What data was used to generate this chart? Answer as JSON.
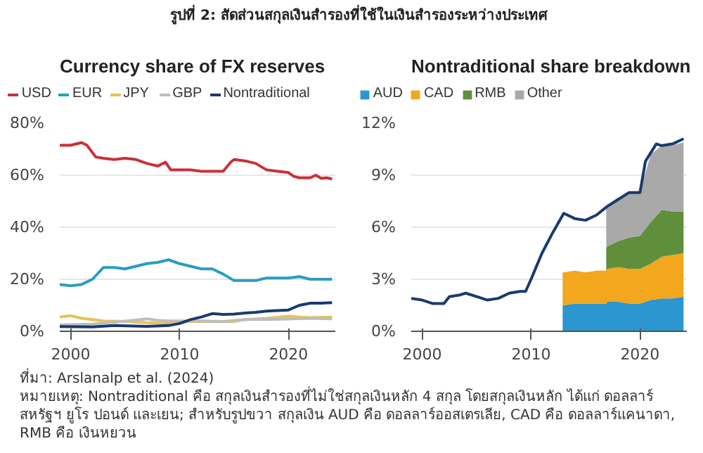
{
  "chart_data": [
    {
      "type": "line",
      "title": "Currency share of FX reserves",
      "annotations": [
        "รูปที่ 2: สัดส่วนสกุลเงินสำรองที่ใช้ในเงินสำรองระหว่างประเทศ",
        "ที่มา: Arslanalp et al. (2024)",
        "หมายเหตุ: Nontraditional คือ สกุลเงินสำรองที่ไม่ใช่สกุลเงินหลัก 4 สกุล โดยสกุลเงินหลัก ได้แก่ ดอลลาร์สหรัฐฯ ยูโร ปอนด์ และเยน; สำหรับรูปขวา สกุลเงิน AUD คือ ดอลลาร์ออสเตรเลีย, CAD คือ ดอลลาร์แคนาดา, RMB คือ เงินหยวน"
      ],
      "xlim": [
        1999,
        2024.3
      ],
      "xticks": [
        2000,
        2010,
        2020
      ],
      "ylim": [
        0,
        80
      ],
      "yticks": [
        {
          "value": 0,
          "label": "0%"
        },
        {
          "value": 20,
          "label": "20%"
        },
        {
          "value": 40,
          "label": "40%"
        },
        {
          "value": 60,
          "label": "60%"
        },
        {
          "value": 80,
          "label": "80%"
        }
      ],
      "grid": "y",
      "legend": "top left",
      "line_style": "solid",
      "series": [
        {
          "name": "USD",
          "color": "#c8313a",
          "x": [
            1999,
            2000,
            2001,
            2001.5,
            2002.3,
            2003,
            2004,
            2005,
            2006,
            2007,
            2008,
            2008.7,
            2009.2,
            2010,
            2011,
            2012,
            2013,
            2014,
            2014.7,
            2015,
            2016,
            2017,
            2018,
            2019,
            2020,
            2020.5,
            2021,
            2022,
            2022.5,
            2023,
            2023.5,
            2024
          ],
          "values": [
            71.5,
            71.5,
            72.5,
            71.5,
            67,
            66.5,
            66,
            66.5,
            66,
            64.5,
            63.5,
            65,
            62,
            62,
            62,
            61.5,
            61.5,
            61.5,
            65,
            66,
            65.5,
            64.5,
            62,
            61.5,
            61,
            59.5,
            59,
            59,
            60,
            58.8,
            59,
            58.5
          ]
        },
        {
          "name": "EUR",
          "color": "#2b9cc4",
          "x": [
            1999,
            2000,
            2001,
            2002,
            2003,
            2004,
            2005,
            2006,
            2007,
            2008,
            2009,
            2010,
            2011,
            2012,
            2013,
            2014,
            2015,
            2016,
            2017,
            2018,
            2019,
            2020,
            2021,
            2022,
            2023,
            2024
          ],
          "values": [
            18,
            17.5,
            18,
            20,
            24.5,
            24.5,
            24,
            25,
            26,
            26.5,
            27.5,
            26,
            25,
            24,
            24,
            22,
            19.5,
            19.5,
            19.5,
            20.5,
            20.5,
            20.5,
            21,
            20,
            20,
            20
          ]
        },
        {
          "name": "JPY",
          "color": "#e8c15a",
          "x": [
            1999,
            2000,
            2001,
            2002,
            2003,
            2005,
            2007,
            2009,
            2011,
            2013,
            2015,
            2016,
            2018,
            2020,
            2021,
            2022,
            2024
          ],
          "values": [
            5.5,
            6,
            5,
            4.5,
            4,
            3.8,
            3.3,
            3,
            3.8,
            3.8,
            3.8,
            4.5,
            5,
            5.8,
            5.5,
            5.3,
            5.5
          ]
        },
        {
          "name": "GBP",
          "color": "#bdbdbd",
          "x": [
            1999,
            2002,
            2004,
            2006,
            2007,
            2008,
            2009,
            2012,
            2014,
            2016,
            2018,
            2020,
            2022,
            2024
          ],
          "values": [
            2.5,
            2.8,
            3.5,
            4.3,
            4.8,
            4.2,
            4,
            4,
            3.8,
            4.5,
            4.5,
            4.7,
            5,
            4.8
          ]
        },
        {
          "name": "Nontraditional",
          "color": "#1a3a6e",
          "x": [
            1999,
            2002,
            2004,
            2007,
            2009,
            2010,
            2011,
            2012,
            2013,
            2014,
            2015,
            2016,
            2017,
            2018,
            2019,
            2020,
            2021,
            2022,
            2023,
            2024
          ],
          "values": [
            1.8,
            1.7,
            2.2,
            1.9,
            2.2,
            3,
            4.5,
            5.5,
            6.8,
            6.5,
            6.6,
            7,
            7.3,
            7.8,
            8,
            8.2,
            10,
            10.8,
            10.8,
            11
          ]
        }
      ]
    },
    {
      "type": "area",
      "title": "Nontraditional share breakdown",
      "stacked": true,
      "xlim": [
        1999,
        2024.3
      ],
      "xticks": [
        2000,
        2010,
        2020
      ],
      "ylim": [
        0,
        12
      ],
      "yticks": [
        {
          "value": 0,
          "label": "0%"
        },
        {
          "value": 3,
          "label": "3%"
        },
        {
          "value": 6,
          "label": "6%"
        },
        {
          "value": 9,
          "label": "9%"
        },
        {
          "value": 12,
          "label": "12%"
        }
      ],
      "grid": "y",
      "legend": "top left",
      "x": [
        2012.9,
        2013,
        2014,
        2015,
        2016,
        2016.9,
        2017,
        2018,
        2019,
        2020,
        2021,
        2022,
        2023,
        2024
      ],
      "series": [
        {
          "name": "AUD",
          "color": "#2b96d0",
          "values": [
            1.5,
            1.5,
            1.6,
            1.6,
            1.6,
            1.6,
            1.7,
            1.7,
            1.6,
            1.6,
            1.8,
            1.9,
            1.9,
            2.0
          ]
        },
        {
          "name": "CAD",
          "color": "#f2a71c",
          "values": [
            1.9,
            1.9,
            1.9,
            1.8,
            1.9,
            1.9,
            1.9,
            2.0,
            2.0,
            2.0,
            2.1,
            2.4,
            2.5,
            2.5
          ]
        },
        {
          "name": "RMB",
          "color": "#5f8f3a",
          "values": [
            null,
            null,
            null,
            null,
            null,
            1.3,
            1.3,
            1.5,
            1.8,
            1.9,
            2.4,
            2.7,
            2.5,
            2.4
          ]
        },
        {
          "name": "Other",
          "color": "#a9a9a9",
          "values": [
            null,
            null,
            null,
            null,
            null,
            2.4,
            2.4,
            2.5,
            2.6,
            2.6,
            3.9,
            3.7,
            3.8,
            4.0
          ]
        },
        {
          "type": "line",
          "color": "#1a3a6e",
          "x": [
            1999,
            2000,
            2001,
            2002,
            2002.5,
            2003.5,
            2004,
            2005,
            2006,
            2007,
            2008,
            2009,
            2009.5,
            2010,
            2011,
            2012,
            2013,
            2014,
            2015,
            2016,
            2017,
            2018,
            2019,
            2020,
            2020.5,
            2021,
            2021.5,
            2022,
            2023,
            2024
          ],
          "values": [
            1.9,
            1.8,
            1.6,
            1.6,
            2.0,
            2.1,
            2.2,
            2.0,
            1.8,
            1.9,
            2.2,
            2.3,
            2.3,
            3.0,
            4.5,
            5.7,
            6.8,
            6.5,
            6.4,
            6.7,
            7.2,
            7.6,
            8.0,
            8.0,
            9.8,
            10.3,
            10.8,
            10.7,
            10.8,
            11.1
          ]
        }
      ]
    }
  ]
}
